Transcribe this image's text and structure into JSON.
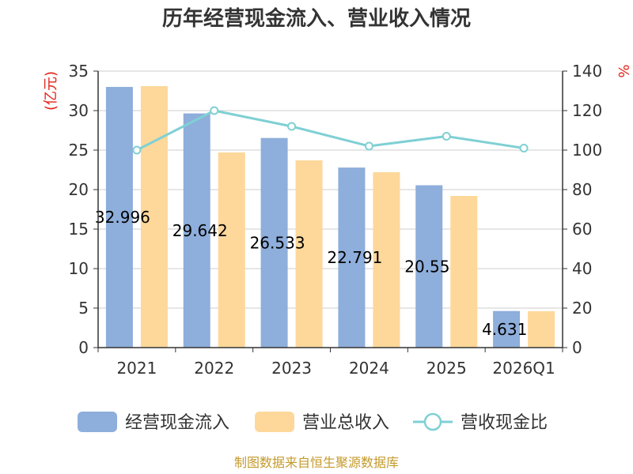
{
  "chart_data": {
    "type": "bar",
    "title": "历年经营现金流入、营业收入情况",
    "categories": [
      "2021",
      "2022",
      "2023",
      "2024",
      "2025",
      "2026Q1"
    ],
    "series": [
      {
        "name": "经营现金流入",
        "type": "bar",
        "axis": "left",
        "color": "#8eaedb",
        "values": [
          32.996,
          29.642,
          26.533,
          22.791,
          20.55,
          4.631
        ],
        "labels": [
          "32.996",
          "29.642",
          "26.533",
          "22.791",
          "20.55",
          "4.631"
        ]
      },
      {
        "name": "营业总收入",
        "type": "bar",
        "axis": "left",
        "color": "#fdd89a",
        "values": [
          33.1,
          24.7,
          23.7,
          22.2,
          19.2,
          4.6
        ]
      },
      {
        "name": "营收现金比",
        "type": "line",
        "axis": "right",
        "color": "#7fd0d4",
        "values": [
          100,
          120,
          112,
          102,
          107,
          101
        ]
      }
    ],
    "y_left": {
      "label": "(亿元)",
      "min": 0,
      "max": 35,
      "ticks": [
        0,
        5,
        10,
        15,
        20,
        25,
        30,
        35
      ]
    },
    "y_right": {
      "label": "%",
      "min": 0,
      "max": 140,
      "ticks": [
        0,
        20,
        40,
        60,
        80,
        100,
        120,
        140
      ]
    },
    "grid": true,
    "legend": "bottom"
  },
  "source": "制图数据来自恒生聚源数据库"
}
